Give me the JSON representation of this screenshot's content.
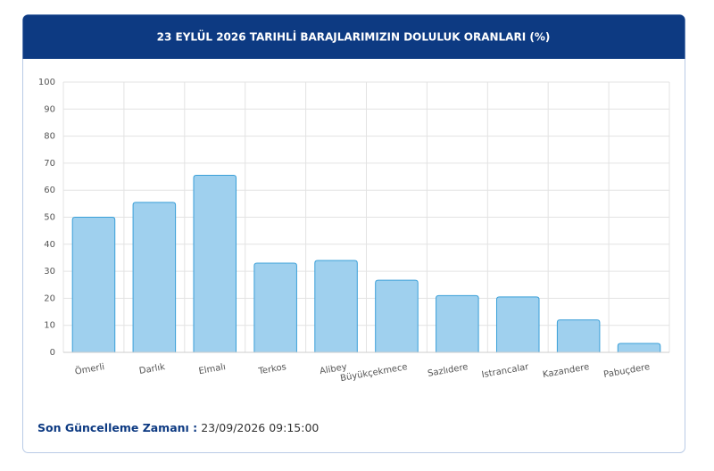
{
  "chart_data": {
    "type": "bar",
    "title": "23 EYLÜL 2026 TARIHLİ BARAJLARIMIZIN DOLULUK ORANLARI (%)",
    "categories": [
      "Ömerli",
      "Darlık",
      "Elmalı",
      "Terkos",
      "Alibey",
      "Büyükçekmece",
      "Sazlıdere",
      "Istrancalar",
      "Kazandere",
      "Pabuçdere"
    ],
    "values": [
      50,
      55.5,
      65.5,
      33,
      34,
      26.7,
      21,
      20.5,
      12,
      3.3
    ],
    "color": "#9fd0ee",
    "ylim": [
      0,
      100
    ],
    "yticks": [
      0,
      10,
      20,
      30,
      40,
      50,
      60,
      70,
      80,
      90,
      100
    ],
    "grid": true
  },
  "footer": {
    "label": "Son Güncelleme Zamanı :",
    "value": "23/09/2026 09:15:00"
  }
}
